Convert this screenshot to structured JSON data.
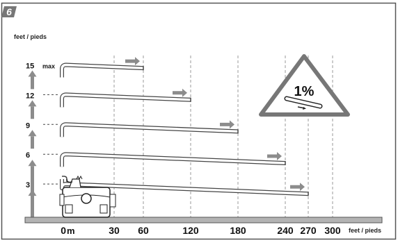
{
  "step_badge": "6",
  "unit_label": "feet / pieds",
  "height_levels": [
    {
      "value": 15,
      "label": "15",
      "suffix": "max",
      "run_ft": 60
    },
    {
      "value": 12,
      "label": "12",
      "suffix": "",
      "run_ft": 120
    },
    {
      "value": 9,
      "label": "9",
      "suffix": "",
      "run_ft": 180
    },
    {
      "value": 6,
      "label": "6",
      "suffix": "",
      "run_ft": 240
    },
    {
      "value": 3,
      "label": "3",
      "suffix": "",
      "run_ft": 270
    }
  ],
  "distance_axis": {
    "ticks": [
      {
        "value": 0,
        "label": "0",
        "unit": "m"
      },
      {
        "value": 30,
        "label": "30"
      },
      {
        "value": 60,
        "label": "60"
      },
      {
        "value": 120,
        "label": "120"
      },
      {
        "value": 180,
        "label": "180"
      },
      {
        "value": 240,
        "label": "240"
      },
      {
        "value": 270,
        "label": "270"
      },
      {
        "value": 300,
        "label": "300"
      }
    ],
    "unit_label": "feet / pieds"
  },
  "slope_sign": {
    "text": "1%"
  },
  "colors": {
    "border": "#555555",
    "floor": "#b3b3b3",
    "arrow": "#8c8c8c",
    "badge": "#777777",
    "pipe": "#444444"
  }
}
